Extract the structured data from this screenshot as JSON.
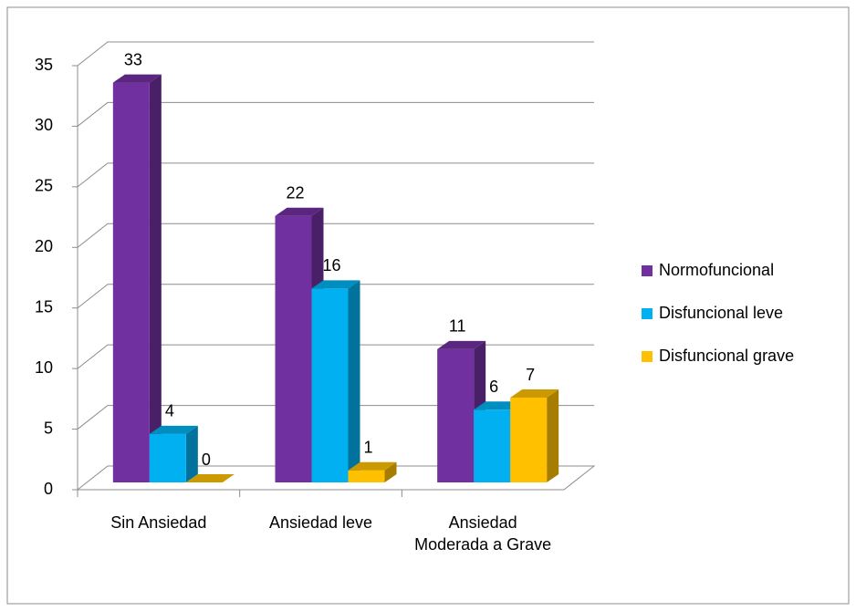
{
  "chart_data": {
    "type": "bar3d",
    "categories": [
      "Sin Ansiedad",
      "Ansiedad leve",
      "Ansiedad Moderada a Grave"
    ],
    "series": [
      {
        "name": "Normofuncional",
        "color": "#7030a0",
        "values": [
          33,
          22,
          11
        ]
      },
      {
        "name": "Disfuncional leve",
        "color": "#00b0f0",
        "values": [
          4,
          16,
          6
        ]
      },
      {
        "name": "Disfuncional grave",
        "color": "#ffc000",
        "values": [
          0,
          1,
          7
        ]
      }
    ],
    "ylim": [
      0,
      35
    ],
    "yticks": [
      0,
      5,
      10,
      15,
      20,
      25,
      30,
      35
    ],
    "grid": true,
    "legend": "right"
  }
}
